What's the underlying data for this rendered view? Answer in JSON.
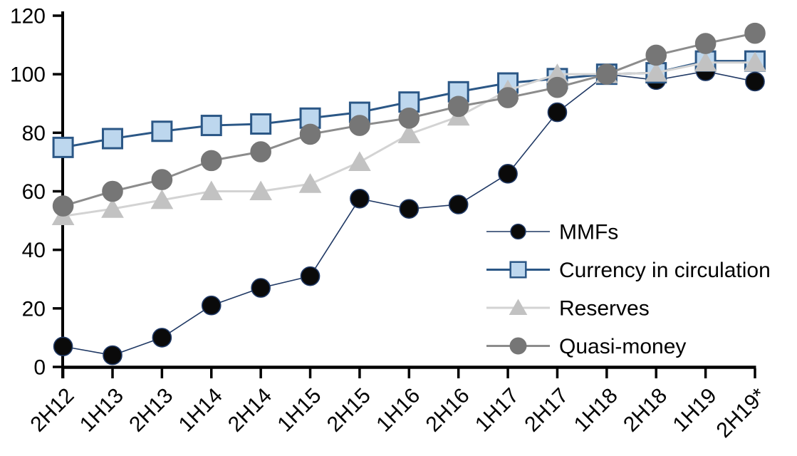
{
  "chart_data": {
    "type": "line",
    "title": "",
    "xlabel": "",
    "ylabel": "",
    "grid": false,
    "legend_position": "inside-right",
    "background_color": "#FFFFFF",
    "axis_color": "#000000",
    "categories": [
      "2H12",
      "1H13",
      "2H13",
      "1H14",
      "2H14",
      "1H15",
      "2H15",
      "1H16",
      "2H16",
      "1H17",
      "2H17",
      "1H18",
      "2H18",
      "1H19",
      "2H19*"
    ],
    "y_axis": {
      "min": 0,
      "max": 120,
      "step": 20,
      "tick_labels": [
        "0",
        "20",
        "40",
        "60",
        "80",
        "100",
        "120"
      ]
    },
    "series": [
      {
        "name": "MMFs",
        "marker": "circle",
        "marker_fill": "#0A0A0A",
        "marker_stroke": "#1F3864",
        "line_color": "#1F3864",
        "line_width": 1.6,
        "marker_size": 26,
        "values": [
          7,
          4,
          10,
          21,
          27,
          31,
          57.5,
          54,
          55.5,
          66,
          87,
          100,
          98,
          101,
          97.5
        ]
      },
      {
        "name": "Currency in circulation",
        "marker": "square",
        "marker_fill": "#BDD7EE",
        "marker_stroke": "#2B5786",
        "line_color": "#2B5786",
        "line_width": 3,
        "marker_size": 27,
        "values": [
          75,
          78,
          80.5,
          82.5,
          83,
          85,
          87,
          90.5,
          94,
          97,
          98.5,
          100,
          100.5,
          104.5,
          104.5
        ]
      },
      {
        "name": "Reserves",
        "marker": "triangle",
        "marker_fill": "#C2C2C2",
        "marker_stroke": "#C2C2C2",
        "line_color": "#D3D3D3",
        "line_width": 3,
        "marker_size": 30,
        "values": [
          51.5,
          54,
          57,
          60,
          60,
          62.5,
          70,
          79.5,
          85.5,
          94.5,
          100,
          100,
          100.5,
          104,
          104
        ]
      },
      {
        "name": "Quasi-money",
        "marker": "circle",
        "marker_fill": "#767676",
        "marker_stroke": "#767676",
        "line_color": "#8C8C8C",
        "line_width": 3,
        "marker_size": 28,
        "values": [
          55,
          60,
          64,
          70.5,
          73.5,
          79.5,
          82.5,
          85,
          89,
          92,
          95.5,
          100,
          106.5,
          110.5,
          114
        ]
      }
    ]
  }
}
